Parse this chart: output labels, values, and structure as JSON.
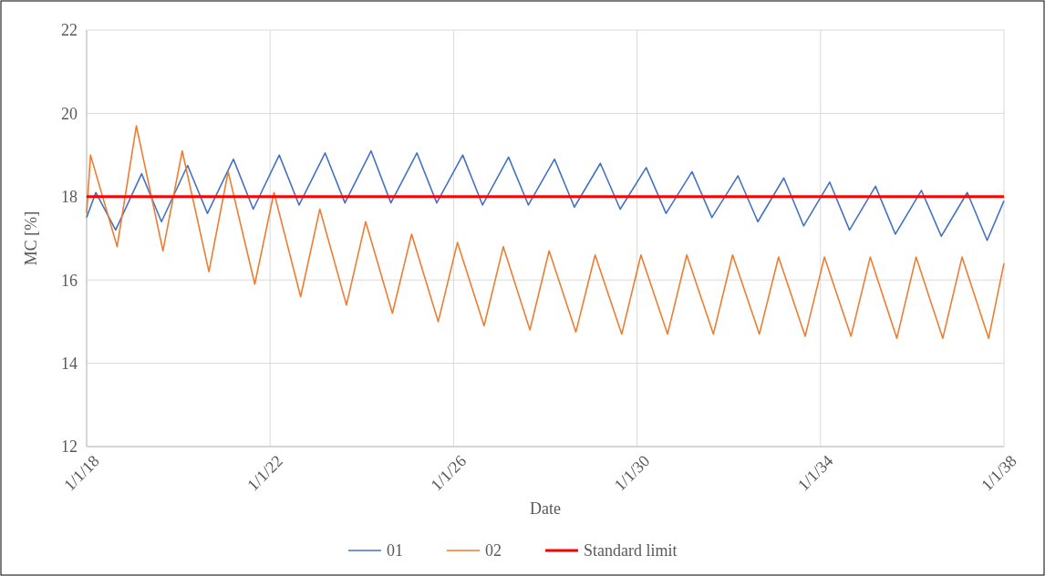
{
  "chart_data": {
    "type": "line",
    "xlabel": "Date",
    "ylabel": "MC [%]",
    "xlim": [
      "2018-01-01",
      "2038-01-01"
    ],
    "xticks": [
      {
        "value": "2018-01-01",
        "label": "1/1/18"
      },
      {
        "value": "2022-01-01",
        "label": "1/1/22"
      },
      {
        "value": "2026-01-01",
        "label": "1/1/26"
      },
      {
        "value": "2030-01-01",
        "label": "1/1/30"
      },
      {
        "value": "2034-01-01",
        "label": "1/1/34"
      },
      {
        "value": "2038-01-01",
        "label": "1/1/38"
      }
    ],
    "ylim": [
      12,
      22
    ],
    "yticks": [
      12,
      14,
      16,
      18,
      20,
      22
    ],
    "grid": true,
    "legend": "bottom",
    "line_style": "solid",
    "marker": "none",
    "series": [
      {
        "name": "01",
        "color": "#4472c4",
        "x": [
          "2018-01-01",
          "2018-03-15",
          "2018-08-20",
          "2019-03-15",
          "2019-08-20",
          "2020-03-15",
          "2020-08-20",
          "2021-03-15",
          "2021-08-20",
          "2022-03-15",
          "2022-08-20",
          "2023-03-15",
          "2023-08-20",
          "2024-03-15",
          "2024-08-20",
          "2025-03-15",
          "2025-08-20",
          "2026-03-15",
          "2026-08-20",
          "2027-03-15",
          "2027-08-20",
          "2028-03-15",
          "2028-08-20",
          "2029-03-15",
          "2029-08-20",
          "2030-03-15",
          "2030-08-20",
          "2031-03-15",
          "2031-08-20",
          "2032-03-15",
          "2032-08-20",
          "2033-03-15",
          "2033-08-20",
          "2034-03-15",
          "2034-08-20",
          "2035-03-15",
          "2035-08-20",
          "2036-03-15",
          "2036-08-20",
          "2037-03-15",
          "2037-08-20",
          "2038-01-01"
        ],
        "values": [
          17.5,
          18.1,
          17.2,
          18.55,
          17.4,
          18.75,
          17.6,
          18.9,
          17.7,
          19.0,
          17.8,
          19.05,
          17.85,
          19.1,
          17.85,
          19.05,
          17.85,
          19.0,
          17.8,
          18.95,
          17.8,
          18.9,
          17.75,
          18.8,
          17.7,
          18.7,
          17.6,
          18.6,
          17.5,
          18.5,
          17.4,
          18.45,
          17.3,
          18.35,
          17.2,
          18.25,
          17.1,
          18.15,
          17.05,
          18.1,
          16.95,
          17.9
        ]
      },
      {
        "name": "02",
        "color": "#ed7d31",
        "x": [
          "2018-01-01",
          "2018-02-01",
          "2018-09-01",
          "2019-02-01",
          "2019-09-01",
          "2020-02-01",
          "2020-09-01",
          "2021-02-01",
          "2021-09-01",
          "2022-02-01",
          "2022-09-01",
          "2023-02-01",
          "2023-09-01",
          "2024-02-01",
          "2024-09-01",
          "2025-02-01",
          "2025-09-01",
          "2026-02-01",
          "2026-09-01",
          "2027-02-01",
          "2027-09-01",
          "2028-02-01",
          "2028-09-01",
          "2029-02-01",
          "2029-09-01",
          "2030-02-01",
          "2030-09-01",
          "2031-02-01",
          "2031-09-01",
          "2032-02-01",
          "2032-09-01",
          "2033-02-01",
          "2033-09-01",
          "2034-02-01",
          "2034-09-01",
          "2035-02-01",
          "2035-09-01",
          "2036-02-01",
          "2036-09-01",
          "2037-02-01",
          "2037-09-01",
          "2038-01-01"
        ],
        "values": [
          17.6,
          19.0,
          16.8,
          19.7,
          16.7,
          19.1,
          16.2,
          18.6,
          15.9,
          18.1,
          15.6,
          17.7,
          15.4,
          17.4,
          15.2,
          17.1,
          15.0,
          16.9,
          14.9,
          16.8,
          14.8,
          16.7,
          14.75,
          16.6,
          14.7,
          16.6,
          14.7,
          16.6,
          14.7,
          16.6,
          14.7,
          16.55,
          14.65,
          16.55,
          14.65,
          16.55,
          14.6,
          16.55,
          14.6,
          16.55,
          14.6,
          16.4
        ]
      }
    ],
    "ref_lines": [
      {
        "axis": "y",
        "value": 18,
        "label": "Standard limit",
        "color": "#ff0000",
        "line_style": "solid"
      }
    ]
  }
}
